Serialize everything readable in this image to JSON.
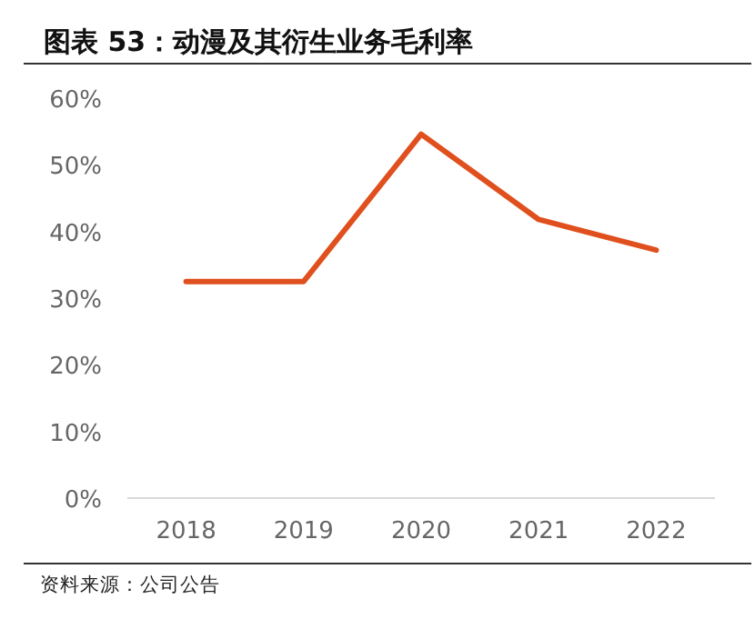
{
  "chart_data": {
    "type": "line",
    "title": "图表 53：动漫及其衍生业务毛利率",
    "categories": [
      "2018",
      "2019",
      "2020",
      "2021",
      "2022"
    ],
    "series": [
      {
        "color": "#e0501e",
        "values": [
          32.5,
          32.5,
          54.6,
          41.8,
          37.2
        ]
      }
    ],
    "ylim": [
      0,
      60
    ],
    "yticks": [
      {
        "value": 0,
        "label": "0%"
      },
      {
        "value": 10,
        "label": "10%"
      },
      {
        "value": 20,
        "label": "20%"
      },
      {
        "value": 30,
        "label": "30%"
      },
      {
        "value": 40,
        "label": "40%"
      },
      {
        "value": 50,
        "label": "50%"
      },
      {
        "value": 60,
        "label": "60%"
      }
    ],
    "grid": false,
    "marker": "none",
    "line_style": "solid",
    "annotations": [
      "资料来源：公司公告"
    ]
  }
}
